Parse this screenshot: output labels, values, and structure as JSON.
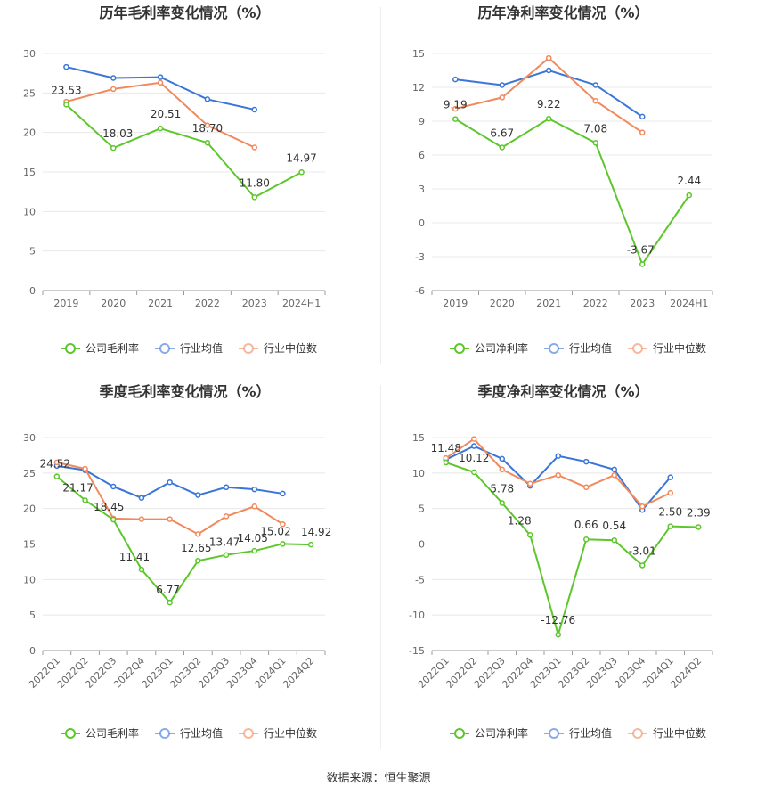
{
  "source_text": "数据来源：恒生聚源",
  "colors": {
    "company": "#5cc72b",
    "avg": "#3a75d8",
    "median": "#f08a5d"
  },
  "chart_data": [
    {
      "type": "line",
      "title": "历年毛利率变化情况（%）",
      "categories": [
        "2019",
        "2020",
        "2021",
        "2022",
        "2023",
        "2024H1"
      ],
      "ylim": [
        0,
        30
      ],
      "yticks": [
        0,
        5,
        10,
        15,
        20,
        25,
        30
      ],
      "rotate_labels": false,
      "series": [
        {
          "name": "公司毛利率",
          "key": "company",
          "values": [
            23.53,
            18.03,
            20.51,
            18.7,
            11.8,
            14.97
          ],
          "labels": [
            "23.53",
            "18.03",
            "20.51",
            "18.70",
            "11.80",
            "14.97"
          ]
        },
        {
          "name": "行业均值",
          "key": "avg",
          "values": [
            28.3,
            26.9,
            27.0,
            24.2,
            22.9,
            null
          ]
        },
        {
          "name": "行业中位数",
          "key": "median",
          "values": [
            23.9,
            25.5,
            26.3,
            20.9,
            18.1,
            null
          ]
        }
      ]
    },
    {
      "type": "line",
      "title": "历年净利率变化情况（%）",
      "categories": [
        "2019",
        "2020",
        "2021",
        "2022",
        "2023",
        "2024H1"
      ],
      "ylim": [
        -6,
        15
      ],
      "yticks": [
        -6,
        -3,
        0,
        3,
        6,
        9,
        12,
        15
      ],
      "rotate_labels": false,
      "series": [
        {
          "name": "公司净利率",
          "key": "company",
          "values": [
            9.19,
            6.67,
            9.22,
            7.08,
            -3.67,
            2.44
          ],
          "labels": [
            "9.19",
            "6.67",
            "9.22",
            "7.08",
            "-3.67",
            "2.44"
          ]
        },
        {
          "name": "行业均值",
          "key": "avg",
          "values": [
            12.7,
            12.2,
            13.5,
            12.2,
            9.4,
            null
          ]
        },
        {
          "name": "行业中位数",
          "key": "median",
          "values": [
            10.1,
            11.1,
            14.6,
            10.8,
            8.0,
            null
          ]
        }
      ]
    },
    {
      "type": "line",
      "title": "季度毛利率变化情况（%）",
      "categories": [
        "2022Q1",
        "2022Q2",
        "2022Q3",
        "2022Q4",
        "2023Q1",
        "2023Q2",
        "2023Q3",
        "2023Q4",
        "2024Q1",
        "2024Q2"
      ],
      "ylim": [
        0,
        30
      ],
      "yticks": [
        0,
        5,
        10,
        15,
        20,
        25,
        30
      ],
      "rotate_labels": true,
      "series": [
        {
          "name": "公司毛利率",
          "key": "company",
          "values": [
            24.52,
            21.17,
            18.45,
            11.41,
            6.77,
            12.65,
            13.47,
            14.05,
            15.02,
            14.92
          ],
          "labels": [
            "24.52",
            "21.17",
            "18.45",
            "11.41",
            "6.77",
            "12.65",
            "13.47",
            "14.05",
            "15.02",
            "14.92"
          ]
        },
        {
          "name": "行业均值",
          "key": "avg",
          "values": [
            26.0,
            25.4,
            23.1,
            21.5,
            23.7,
            21.9,
            23.0,
            22.7,
            22.1,
            null
          ]
        },
        {
          "name": "行业中位数",
          "key": "median",
          "values": [
            26.5,
            25.6,
            18.6,
            18.5,
            18.5,
            16.4,
            18.9,
            20.3,
            17.8,
            null
          ]
        }
      ]
    },
    {
      "type": "line",
      "title": "季度净利率变化情况（%）",
      "categories": [
        "2022Q1",
        "2022Q2",
        "2022Q3",
        "2022Q4",
        "2023Q1",
        "2023Q2",
        "2023Q3",
        "2023Q4",
        "2024Q1",
        "2024Q2"
      ],
      "ylim": [
        -15,
        15
      ],
      "yticks": [
        -15,
        -10,
        -5,
        0,
        5,
        10,
        15
      ],
      "rotate_labels": true,
      "series": [
        {
          "name": "公司净利率",
          "key": "company",
          "values": [
            11.48,
            10.12,
            5.78,
            1.28,
            -12.76,
            0.66,
            0.54,
            -3.01,
            2.5,
            2.39
          ],
          "labels": [
            "11.48",
            "10.12",
            "5.78",
            "1.28",
            "-12.76",
            "0.66",
            "0.54",
            "-3.01",
            "2.50",
            "2.39"
          ]
        },
        {
          "name": "行业均值",
          "key": "avg",
          "values": [
            11.9,
            13.8,
            12.0,
            8.2,
            12.4,
            11.6,
            10.5,
            4.8,
            9.4,
            null
          ]
        },
        {
          "name": "行业中位数",
          "key": "median",
          "values": [
            12.1,
            14.8,
            10.5,
            8.5,
            9.7,
            8.0,
            9.7,
            5.3,
            7.2,
            null
          ]
        }
      ]
    }
  ]
}
